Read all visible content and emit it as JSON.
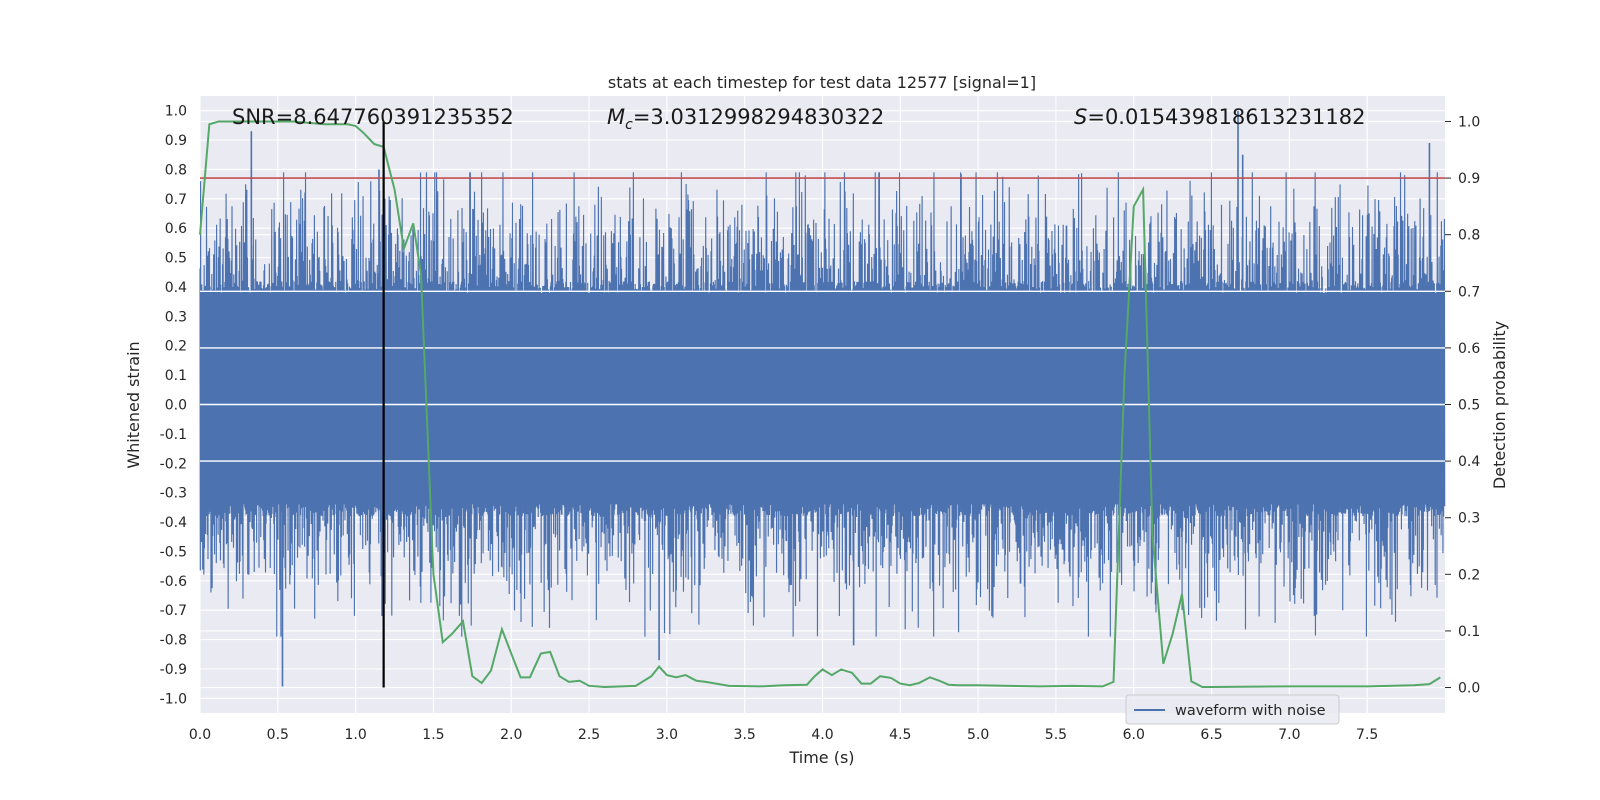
{
  "chart_data": {
    "type": "line",
    "title": "stats at each timestep for test data 12577 [signal=1]",
    "xlabel": "Time (s)",
    "ylabel": "Whitened strain",
    "y2label": "Detection probability",
    "xlim": [
      0,
      8
    ],
    "ylim": [
      -1.05,
      1.05
    ],
    "y2lim": [
      -0.045,
      1.045
    ],
    "x_ticks": [
      "0.0",
      "0.5",
      "1.0",
      "1.5",
      "2.0",
      "2.5",
      "3.0",
      "3.5",
      "4.0",
      "4.5",
      "5.0",
      "5.5",
      "6.0",
      "6.5",
      "7.0",
      "7.5"
    ],
    "y_ticks": [
      "1.0",
      "0.9",
      "0.8",
      "0.7",
      "0.6",
      "0.5",
      "0.4",
      "0.3",
      "0.2",
      "0.1",
      "0.0",
      "-0.1",
      "-0.2",
      "-0.3",
      "-0.4",
      "-0.5",
      "-0.6",
      "-0.7",
      "-0.8",
      "-0.9",
      "-1.0"
    ],
    "y2_ticks": [
      "1.0",
      "0.9",
      "0.8",
      "0.7",
      "0.6",
      "0.5",
      "0.4",
      "0.3",
      "0.2",
      "0.1",
      "0.0"
    ],
    "grid": true,
    "legend": {
      "position": "bottom-right",
      "entries": [
        "waveform with noise"
      ]
    },
    "annotations": {
      "snr": "SNR=8.647760391235352",
      "mc_symbol": "M",
      "mc_sub": "c",
      "mc_value": "=3.0312998294830322",
      "s_symbol": "S",
      "s_value": "=0.015439818613231182"
    },
    "threshold_probability": 0.9,
    "marker_time": 1.18,
    "colors": {
      "waveform": "#4c72b0",
      "probability": "#55a868",
      "threshold": "#c44e52",
      "marker": "#000000",
      "background": "#eaeaf2",
      "grid": "#ffffff"
    },
    "waveform": {
      "name": "waveform with noise",
      "duration": 8,
      "core_band": [
        -0.38,
        0.42
      ],
      "max_abs": 1.0,
      "peaks": [
        [
          0.33,
          0.93
        ],
        [
          0.53,
          -0.96
        ],
        [
          1.15,
          0.8
        ],
        [
          1.17,
          -0.72
        ],
        [
          2.95,
          -0.87
        ],
        [
          4.2,
          -0.82
        ],
        [
          6.67,
          1.0
        ],
        [
          6.7,
          0.85
        ],
        [
          7.9,
          0.89
        ]
      ]
    },
    "probability": {
      "x": [
        0.0,
        0.06,
        0.12,
        0.2,
        0.4,
        0.6,
        0.8,
        0.95,
        1.0,
        1.05,
        1.12,
        1.18,
        1.25,
        1.31,
        1.37,
        1.42,
        1.5,
        1.56,
        1.62,
        1.69,
        1.75,
        1.81,
        1.87,
        1.94,
        2.0,
        2.06,
        2.12,
        2.19,
        2.25,
        2.31,
        2.37,
        2.44,
        2.5,
        2.6,
        2.8,
        2.9,
        2.95,
        3.0,
        3.06,
        3.12,
        3.19,
        3.25,
        3.4,
        3.6,
        3.75,
        3.9,
        3.95,
        4.0,
        4.06,
        4.12,
        4.19,
        4.25,
        4.31,
        4.37,
        4.44,
        4.5,
        4.56,
        4.62,
        4.69,
        4.75,
        4.81,
        4.87,
        4.94,
        5.0,
        5.2,
        5.4,
        5.6,
        5.8,
        5.87,
        5.94,
        6.0,
        6.06,
        6.12,
        6.19,
        6.25,
        6.31,
        6.37,
        6.44,
        6.5,
        7.0,
        7.5,
        7.8,
        7.9,
        7.97
      ],
      "y": [
        0.8,
        0.995,
        1.0,
        1.0,
        1.0,
        1.0,
        0.995,
        0.995,
        0.992,
        0.98,
        0.96,
        0.955,
        0.88,
        0.775,
        0.82,
        0.73,
        0.2,
        0.08,
        0.095,
        0.117,
        0.02,
        0.008,
        0.03,
        0.103,
        0.06,
        0.018,
        0.018,
        0.06,
        0.063,
        0.02,
        0.01,
        0.012,
        0.003,
        0.001,
        0.003,
        0.02,
        0.037,
        0.022,
        0.018,
        0.022,
        0.012,
        0.01,
        0.003,
        0.002,
        0.004,
        0.005,
        0.02,
        0.032,
        0.022,
        0.032,
        0.026,
        0.007,
        0.007,
        0.02,
        0.017,
        0.007,
        0.004,
        0.008,
        0.018,
        0.012,
        0.005,
        0.004,
        0.004,
        0.004,
        0.003,
        0.002,
        0.003,
        0.002,
        0.01,
        0.55,
        0.85,
        0.88,
        0.27,
        0.042,
        0.095,
        0.165,
        0.011,
        0.001,
        0.001,
        0.002,
        0.002,
        0.004,
        0.006,
        0.018
      ]
    }
  }
}
